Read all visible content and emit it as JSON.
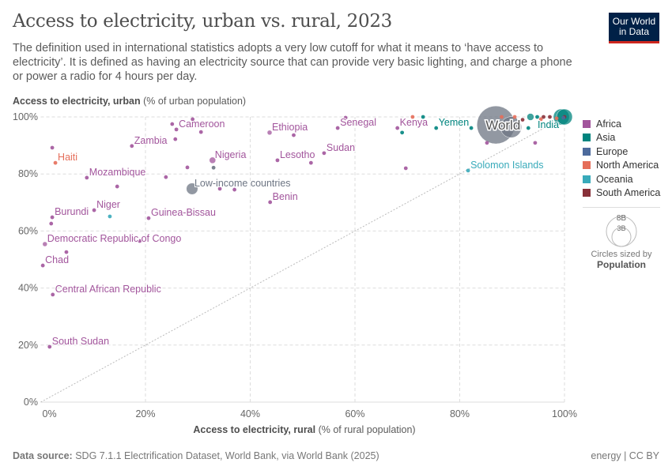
{
  "header": {
    "title": "Access to electricity, urban vs. rural, 2023",
    "subtitle": "The definition used in international statistics adopts a very low cutoff for what it means to ‘have access to electricity’. It is defined as having an electricity source that can provide very basic lighting, and charge a phone or power a radio for 4 hours per day.",
    "logo": "Our World in Data"
  },
  "footer": {
    "source_label": "Data source:",
    "source": "SDG 7.1.1 Electrification Dataset, World Bank, via World Bank (2025)",
    "license": "energy | CC BY"
  },
  "size_legend": {
    "large": "8B",
    "small": "3B",
    "caption": "Circles sized by",
    "variable": "Population"
  },
  "colors": {
    "Africa": "#a2559c",
    "Asia": "#00847e",
    "Europe": "#4c6a9c",
    "North America": "#e56e5a",
    "Oceania": "#38aaba",
    "South America": "#883039",
    "Aggregate": "#6d7583"
  },
  "chart_data": {
    "type": "scatter",
    "title": "Access to electricity, urban vs. rural, 2023",
    "xlabel_bold": "Access to electricity, rural",
    "xlabel_unit": "(% of rural population)",
    "ylabel_bold": "Access to electricity, urban",
    "ylabel_unit": "(% of urban population)",
    "xlim": [
      0,
      100
    ],
    "ylim": [
      0,
      100
    ],
    "xticks": [
      "0%",
      "20%",
      "40%",
      "60%",
      "80%",
      "100%"
    ],
    "yticks": [
      "0%",
      "20%",
      "40%",
      "60%",
      "80%",
      "100%"
    ],
    "grid": true,
    "diagonal_reference_line": true,
    "legend": [
      "Africa",
      "Asia",
      "Europe",
      "North America",
      "Oceania",
      "South America"
    ],
    "legend_position": "right",
    "points": [
      {
        "label": "South Sudan",
        "x": 1.7,
        "y": 19.4,
        "region": "Africa"
      },
      {
        "label": "Central African Republic",
        "x": 2.3,
        "y": 37.7,
        "region": "Africa"
      },
      {
        "label": "Chad",
        "x": 0.4,
        "y": 47.9,
        "region": "Africa"
      },
      {
        "label": "Democratic Republic of Congo",
        "x": 0.8,
        "y": 55.4,
        "region": "Africa",
        "pop_b": 0.11
      },
      {
        "label": "Burundi",
        "x": 2.2,
        "y": 64.8,
        "region": "Africa"
      },
      {
        "label": "Niger",
        "x": 10.2,
        "y": 67.3,
        "region": "Africa"
      },
      {
        "label": "Guinea-Bissau",
        "x": 20.6,
        "y": 64.5,
        "region": "Africa"
      },
      {
        "label": "Mozambique",
        "x": 8.8,
        "y": 78.7,
        "region": "Africa"
      },
      {
        "label": "Haiti",
        "x": 2.8,
        "y": 83.9,
        "region": "North America"
      },
      {
        "label": "Zambia",
        "x": 17.4,
        "y": 89.8,
        "region": "Africa"
      },
      {
        "label": "Cameroon",
        "x": 25.9,
        "y": 95.6,
        "region": "Africa"
      },
      {
        "label": "Nigeria",
        "x": 32.8,
        "y": 84.8,
        "region": "Africa",
        "pop_b": 0.23
      },
      {
        "label": "Low-income countries",
        "x": 28.9,
        "y": 74.8,
        "region": "Aggregate",
        "pop_b": 0.75
      },
      {
        "label": "Ethiopia",
        "x": 43.7,
        "y": 94.5,
        "region": "Africa",
        "pop_b": 0.13
      },
      {
        "label": "Lesotho",
        "x": 45.2,
        "y": 84.8,
        "region": "Africa"
      },
      {
        "label": "Benin",
        "x": 43.8,
        "y": 70.1,
        "region": "Africa"
      },
      {
        "label": "Sudan",
        "x": 54.1,
        "y": 87.3,
        "region": "Africa"
      },
      {
        "label": "Senegal",
        "x": 56.7,
        "y": 96.1,
        "region": "Africa"
      },
      {
        "label": "Kenya",
        "x": 68.1,
        "y": 96.1,
        "region": "Africa"
      },
      {
        "label": "Yemen",
        "x": 75.5,
        "y": 96.1,
        "region": "Asia"
      },
      {
        "label": "Solomon Islands",
        "x": 81.6,
        "y": 81.2,
        "region": "Oceania"
      },
      {
        "label": "World",
        "x": 86.9,
        "y": 97.2,
        "region": "Aggregate",
        "pop_b": 8.1
      },
      {
        "label": "India",
        "x": 99.4,
        "y": 100,
        "region": "Asia",
        "pop_b": 1.44
      },
      {
        "x": 2.2,
        "y": 89.2,
        "region": "Africa"
      },
      {
        "x": 29,
        "y": 99.2,
        "region": "Africa"
      },
      {
        "x": 25.1,
        "y": 97.5,
        "region": "Africa"
      },
      {
        "x": 30.6,
        "y": 94.7,
        "region": "Africa"
      },
      {
        "x": 25.7,
        "y": 92.2,
        "region": "Africa"
      },
      {
        "x": 28,
        "y": 82.3,
        "region": "Africa"
      },
      {
        "x": 33,
        "y": 82.2,
        "region": "Aggregate"
      },
      {
        "x": 23.9,
        "y": 78.9,
        "region": "Africa"
      },
      {
        "x": 14.6,
        "y": 75.6,
        "region": "Africa"
      },
      {
        "x": 34.2,
        "y": 74.8,
        "region": "Africa"
      },
      {
        "x": 37,
        "y": 74.5,
        "region": "Africa"
      },
      {
        "x": 48.3,
        "y": 93.6,
        "region": "Africa"
      },
      {
        "x": 51.6,
        "y": 83.9,
        "region": "Africa"
      },
      {
        "x": 58.2,
        "y": 99.7,
        "region": "Africa"
      },
      {
        "x": 2,
        "y": 62.6,
        "region": "Africa"
      },
      {
        "x": 13.2,
        "y": 65.1,
        "region": "Oceania"
      },
      {
        "x": 4.9,
        "y": 52.6,
        "region": "Africa"
      },
      {
        "x": 18.9,
        "y": 56.5,
        "region": "Africa"
      },
      {
        "x": 69.7,
        "y": 82,
        "region": "Africa"
      },
      {
        "x": 85.2,
        "y": 90.9,
        "region": "Africa"
      },
      {
        "x": 94.4,
        "y": 90.9,
        "region": "Africa"
      },
      {
        "x": 69,
        "y": 94.5,
        "region": "Asia"
      },
      {
        "x": 73,
        "y": 100,
        "region": "Asia"
      },
      {
        "x": 71,
        "y": 100,
        "region": "North America"
      },
      {
        "x": 82.2,
        "y": 96.1,
        "region": "Asia"
      },
      {
        "x": 93.1,
        "y": 96.1,
        "region": "Asia"
      },
      {
        "x": 89.8,
        "y": 96.4,
        "region": "Aggregate",
        "pop_b": 2.5
      },
      {
        "x": 88,
        "y": 100,
        "region": "North America"
      },
      {
        "x": 90.5,
        "y": 100,
        "region": "North America"
      },
      {
        "x": 92,
        "y": 99,
        "region": "South America"
      },
      {
        "x": 93.5,
        "y": 100,
        "region": "Asia",
        "pop_b": 0.28
      },
      {
        "x": 94.8,
        "y": 100,
        "region": "Asia"
      },
      {
        "x": 96,
        "y": 100,
        "region": "South America"
      },
      {
        "x": 97.2,
        "y": 100,
        "region": "South America"
      },
      {
        "x": 95.5,
        "y": 99.2,
        "region": "North America"
      },
      {
        "x": 98.5,
        "y": 99.5,
        "region": "North America"
      },
      {
        "x": 100,
        "y": 100,
        "region": "Asia",
        "pop_b": 1.41
      },
      {
        "x": 100,
        "y": 100,
        "region": "South America"
      },
      {
        "x": 99.8,
        "y": 99.7,
        "region": "Europe"
      }
    ]
  }
}
